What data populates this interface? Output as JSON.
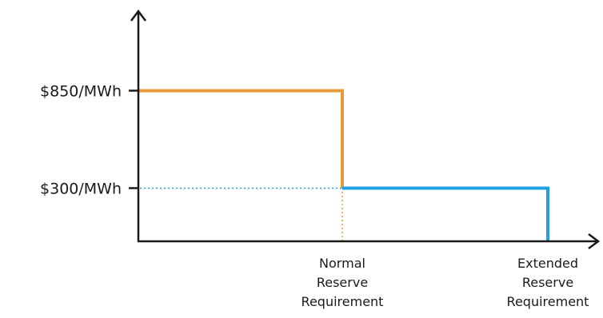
{
  "chart_data": {
    "type": "line",
    "title": "",
    "xlabel": "",
    "ylabel": "",
    "y_unit": "$/MWh",
    "y_ticks": [
      {
        "value": 850,
        "label": "$850/MWh"
      },
      {
        "value": 300,
        "label": "$300/MWh"
      }
    ],
    "x_categories": [
      {
        "key": "normal",
        "lines": [
          "Normal",
          "Reserve",
          "Requirement"
        ]
      },
      {
        "key": "extended",
        "lines": [
          "Extended",
          "Reserve",
          "Requirement"
        ]
      }
    ],
    "ylim": [
      0,
      1000
    ],
    "grid": false,
    "legend": "none",
    "series": [
      {
        "color": "#E89B3A",
        "segments": [
          {
            "x_from": "origin",
            "x_to": "normal",
            "y": 850
          }
        ],
        "drop_to": 300
      },
      {
        "color": "#1FA0E0",
        "segments": [
          {
            "x_from": "normal",
            "x_to": "extended",
            "y": 300
          }
        ],
        "drop_to": 0
      }
    ],
    "guides": [
      {
        "color": "#1FA0E0",
        "style": "dotted",
        "horizontal_at_y": 300,
        "from": "axis",
        "to": "normal"
      },
      {
        "color": "#E89B3A",
        "style": "dotted",
        "vertical_at_x": "normal",
        "from_y": 0,
        "to_y": 300
      }
    ],
    "colors": {
      "axis": "#1a1a1a",
      "orange": "#E89B3A",
      "blue": "#1FA0E0"
    }
  }
}
